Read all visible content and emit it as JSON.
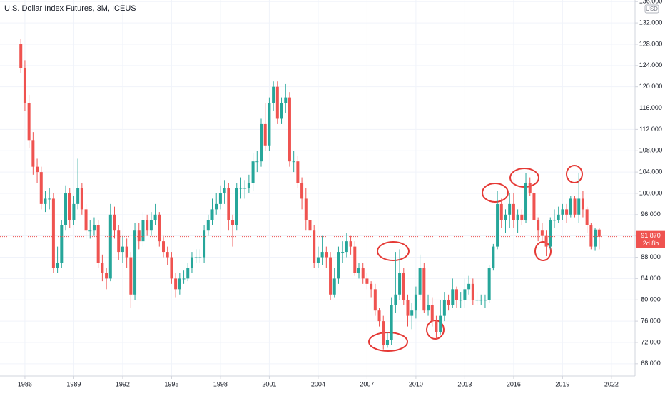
{
  "chart_data": {
    "type": "candlestick",
    "title": "U.S. Dollar Index Futures, 3M, ICEUS",
    "currency": "USD",
    "x": [
      1985.75,
      1986,
      1986.25,
      1986.5,
      1986.75,
      1987,
      1987.25,
      1987.5,
      1987.75,
      1988,
      1988.25,
      1988.5,
      1988.75,
      1989,
      1989.25,
      1989.5,
      1989.75,
      1990,
      1990.25,
      1990.5,
      1990.75,
      1991,
      1991.25,
      1991.5,
      1991.75,
      1992,
      1992.25,
      1992.5,
      1992.75,
      1993,
      1993.25,
      1993.5,
      1993.75,
      1994,
      1994.25,
      1994.5,
      1994.75,
      1995,
      1995.25,
      1995.5,
      1995.75,
      1996,
      1996.25,
      1996.5,
      1996.75,
      1997,
      1997.25,
      1997.5,
      1997.75,
      1998,
      1998.25,
      1998.5,
      1998.75,
      1999,
      1999.25,
      1999.5,
      1999.75,
      2000,
      2000.25,
      2000.5,
      2000.75,
      2001,
      2001.25,
      2001.5,
      2001.75,
      2002,
      2002.25,
      2002.5,
      2002.75,
      2003,
      2003.25,
      2003.5,
      2003.75,
      2004,
      2004.25,
      2004.5,
      2004.75,
      2005,
      2005.25,
      2005.5,
      2005.75,
      2006,
      2006.25,
      2006.5,
      2006.75,
      2007,
      2007.25,
      2007.5,
      2007.75,
      2008,
      2008.25,
      2008.5,
      2008.75,
      2009,
      2009.25,
      2009.5,
      2009.75,
      2010,
      2010.25,
      2010.5,
      2010.75,
      2011,
      2011.25,
      2011.5,
      2011.75,
      2012,
      2012.25,
      2012.5,
      2012.75,
      2013,
      2013.25,
      2013.5,
      2013.75,
      2014,
      2014.25,
      2014.5,
      2014.75,
      2015,
      2015.25,
      2015.5,
      2015.75,
      2016,
      2016.25,
      2016.5,
      2016.75,
      2017,
      2017.25,
      2017.5,
      2017.75,
      2018,
      2018.25,
      2018.5,
      2018.75,
      2019,
      2019.25,
      2019.5,
      2019.75,
      2020,
      2020.25,
      2020.5,
      2020.75,
      2021,
      2021.25
    ],
    "open": [
      128,
      123.5,
      117,
      110,
      105,
      104,
      98,
      99,
      99,
      86,
      87,
      94,
      100,
      95,
      98,
      101,
      97,
      93,
      93,
      94,
      87,
      85,
      84,
      96,
      93,
      89,
      90,
      88,
      81,
      93,
      91,
      95,
      93,
      95,
      96,
      91,
      89,
      88,
      84,
      82,
      84,
      84,
      86,
      88,
      88,
      88,
      93,
      95,
      97,
      98,
      100,
      101,
      95,
      94,
      101,
      101,
      101,
      102,
      106,
      106,
      113,
      109,
      117,
      120,
      114,
      117,
      118,
      106,
      106,
      102,
      99,
      95,
      93,
      87,
      88,
      89,
      88,
      81,
      84,
      89,
      89,
      91,
      90,
      85,
      86,
      84,
      83,
      82,
      78,
      76,
      71.5,
      72.5,
      79,
      81,
      85,
      80,
      77,
      78,
      81,
      86,
      78,
      79,
      76,
      74,
      77,
      80,
      79,
      82,
      80,
      80,
      82,
      83,
      80,
      80,
      80,
      80,
      86,
      90,
      98,
      95,
      96,
      98,
      95,
      96,
      95,
      102,
      100,
      95,
      93,
      92,
      90,
      95,
      95,
      96,
      97,
      96,
      99,
      96,
      99,
      97,
      94,
      90,
      93.2
    ],
    "high": [
      129,
      125,
      118.5,
      111.5,
      106.5,
      105,
      100.5,
      101,
      100,
      90,
      95,
      101.5,
      101,
      99.5,
      106.5,
      102,
      98,
      95,
      95.5,
      95,
      88.5,
      86,
      98,
      97.5,
      94,
      92,
      91.5,
      89,
      94.5,
      94.5,
      96.5,
      96,
      96.5,
      98,
      96.5,
      92,
      90,
      89,
      85,
      85,
      85.5,
      87,
      89,
      89.5,
      89.5,
      94,
      96,
      99,
      100,
      101.5,
      102.5,
      102,
      96,
      102,
      103,
      102.5,
      103.5,
      107.5,
      108,
      114,
      117,
      118,
      121,
      121,
      118,
      120.5,
      119,
      108,
      107,
      103,
      101,
      96,
      94,
      90,
      92,
      90,
      89,
      86,
      90,
      91,
      92.5,
      92,
      91,
      87,
      87,
      85,
      83.5,
      83,
      78.5,
      77,
      74,
      80.5,
      89,
      89.5,
      86,
      81,
      79.5,
      82.5,
      88.5,
      87,
      81,
      80.5,
      77,
      80,
      81.5,
      81,
      84,
      82.5,
      81.5,
      84,
      84.5,
      84,
      81.5,
      81,
      81,
      86.5,
      90.5,
      100.5,
      99,
      97,
      100,
      100,
      97,
      97,
      103.8,
      103,
      100.5,
      95.5,
      94.5,
      93,
      95.5,
      97,
      97.5,
      98,
      98,
      99.5,
      99.5,
      103.8,
      100.5,
      97.5,
      94.5,
      93.5,
      93.5
    ],
    "low": [
      122.5,
      115.5,
      108.5,
      103.5,
      102,
      97,
      96.5,
      97,
      85,
      85,
      86,
      93,
      93.5,
      94,
      97,
      96,
      91.5,
      91.5,
      92,
      86,
      83.5,
      82,
      83.5,
      91.5,
      87.5,
      87,
      86,
      78.5,
      80,
      89.5,
      90,
      92,
      92,
      94,
      90,
      88,
      86.5,
      83,
      80.5,
      81,
      83,
      83.5,
      85,
      87,
      87,
      87,
      92,
      94,
      96,
      97,
      98,
      93,
      90,
      93,
      99,
      99,
      100,
      100.5,
      104,
      105,
      108,
      108,
      115.5,
      113,
      113,
      115,
      105,
      104,
      101,
      97,
      93,
      91.5,
      86,
      86,
      86.5,
      86,
      80,
      80.5,
      83,
      87,
      88,
      88.5,
      84.5,
      84,
      83,
      82,
      80.5,
      77,
      75,
      70.7,
      71,
      71.5,
      77.5,
      80,
      79,
      75,
      74.5,
      76.5,
      80,
      77.5,
      77,
      75,
      72.7,
      73.5,
      76,
      78,
      78.5,
      78.5,
      78.5,
      78.5,
      81,
      79,
      79,
      79,
      78.5,
      79.5,
      85.5,
      89.5,
      93.5,
      92.5,
      93.5,
      93.5,
      92.5,
      94,
      94.5,
      99.5,
      95,
      91,
      91,
      88.2,
      89.5,
      93.5,
      94.5,
      95,
      94.5,
      95.5,
      95.5,
      94.5,
      95.5,
      92.5,
      89.5,
      89.2,
      89.5
    ],
    "close": [
      123.5,
      117,
      110,
      105,
      104,
      98,
      99,
      99,
      86,
      87,
      94,
      100,
      95,
      98,
      101,
      97,
      93,
      93,
      94,
      87,
      85,
      84,
      96,
      93,
      89,
      90,
      88,
      81,
      93,
      91,
      95,
      93,
      95,
      96,
      91,
      89,
      88,
      84,
      82,
      84,
      84,
      86,
      88,
      88,
      88,
      93,
      95,
      97,
      98,
      100,
      101,
      95,
      94,
      101,
      101,
      101,
      102,
      106,
      106,
      113,
      109,
      117,
      120,
      114,
      117,
      118,
      106,
      106,
      102,
      99,
      95,
      93,
      87,
      88,
      89,
      88,
      81,
      84,
      89,
      89,
      91,
      90,
      85,
      86,
      84,
      83,
      82,
      78,
      76,
      71.5,
      72.5,
      79,
      81,
      85,
      80,
      77,
      78,
      81,
      86,
      78,
      79,
      76,
      74,
      77,
      80,
      79,
      82,
      80,
      80,
      82,
      83,
      80,
      80,
      80,
      80,
      86,
      90,
      98,
      95,
      96,
      98,
      95,
      96,
      95,
      102,
      100,
      95,
      93,
      92,
      90,
      95,
      95,
      96,
      97,
      96,
      99,
      96,
      99,
      97,
      94,
      90,
      93.2,
      91.87
    ],
    "up_color": "#26a69a",
    "down_color": "#ef5350",
    "xlim": [
      1984.47,
      2023.45
    ],
    "xticks": [
      1986,
      1989,
      1992,
      1995,
      1998,
      2001,
      2004,
      2007,
      2010,
      2013,
      2016,
      2019,
      2022
    ],
    "ylim": [
      65.7,
      136.3
    ],
    "yticks": [
      {
        "value": 68,
        "label": "68.000"
      },
      {
        "value": 72,
        "label": "72.000"
      },
      {
        "value": 76,
        "label": "76.000"
      },
      {
        "value": 80,
        "label": "80.000"
      },
      {
        "value": 84,
        "label": "84.000"
      },
      {
        "value": 88,
        "label": "88.000"
      },
      {
        "value": 92,
        "label": "92.000"
      },
      {
        "value": 96,
        "label": "96.000"
      },
      {
        "value": 100,
        "label": "100.000"
      },
      {
        "value": 104,
        "label": "104.000"
      },
      {
        "value": 108,
        "label": "108.000"
      },
      {
        "value": 112,
        "label": "112.000"
      },
      {
        "value": 116,
        "label": "116.000"
      },
      {
        "value": 120,
        "label": "120.000"
      },
      {
        "value": 124,
        "label": "124.000"
      },
      {
        "value": 128,
        "label": "128.000"
      },
      {
        "value": 132,
        "label": "132.000"
      },
      {
        "value": 136,
        "label": "136.000"
      }
    ],
    "grid": true,
    "last_price": {
      "value": 91.87,
      "label": "91.870"
    },
    "countdown": "2d 8h"
  }
}
